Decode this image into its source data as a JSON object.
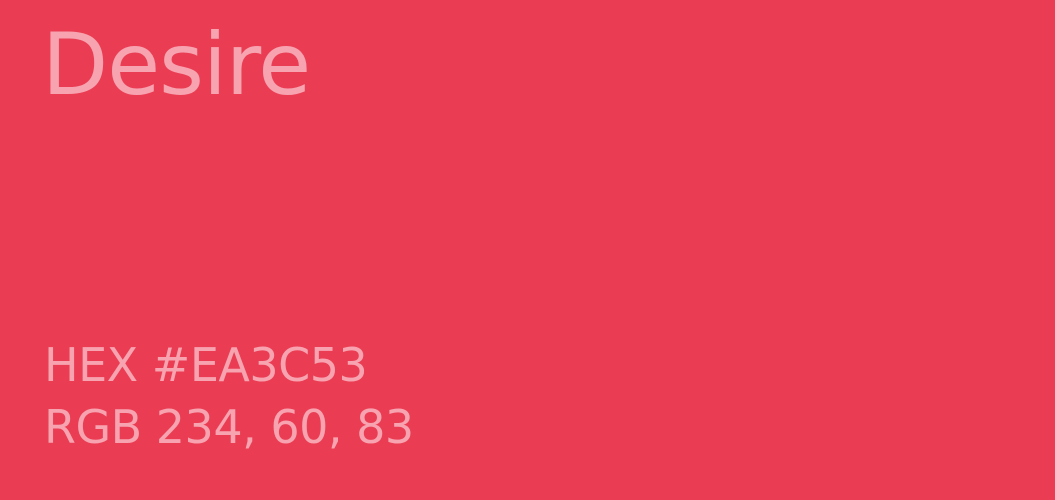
{
  "swatch": {
    "name": "Desire",
    "hex_line": "HEX #EA3C53",
    "rgb_line": "RGB 234, 60, 83",
    "background_color": "#EA3C53",
    "text_color": "#F7A3B0"
  }
}
